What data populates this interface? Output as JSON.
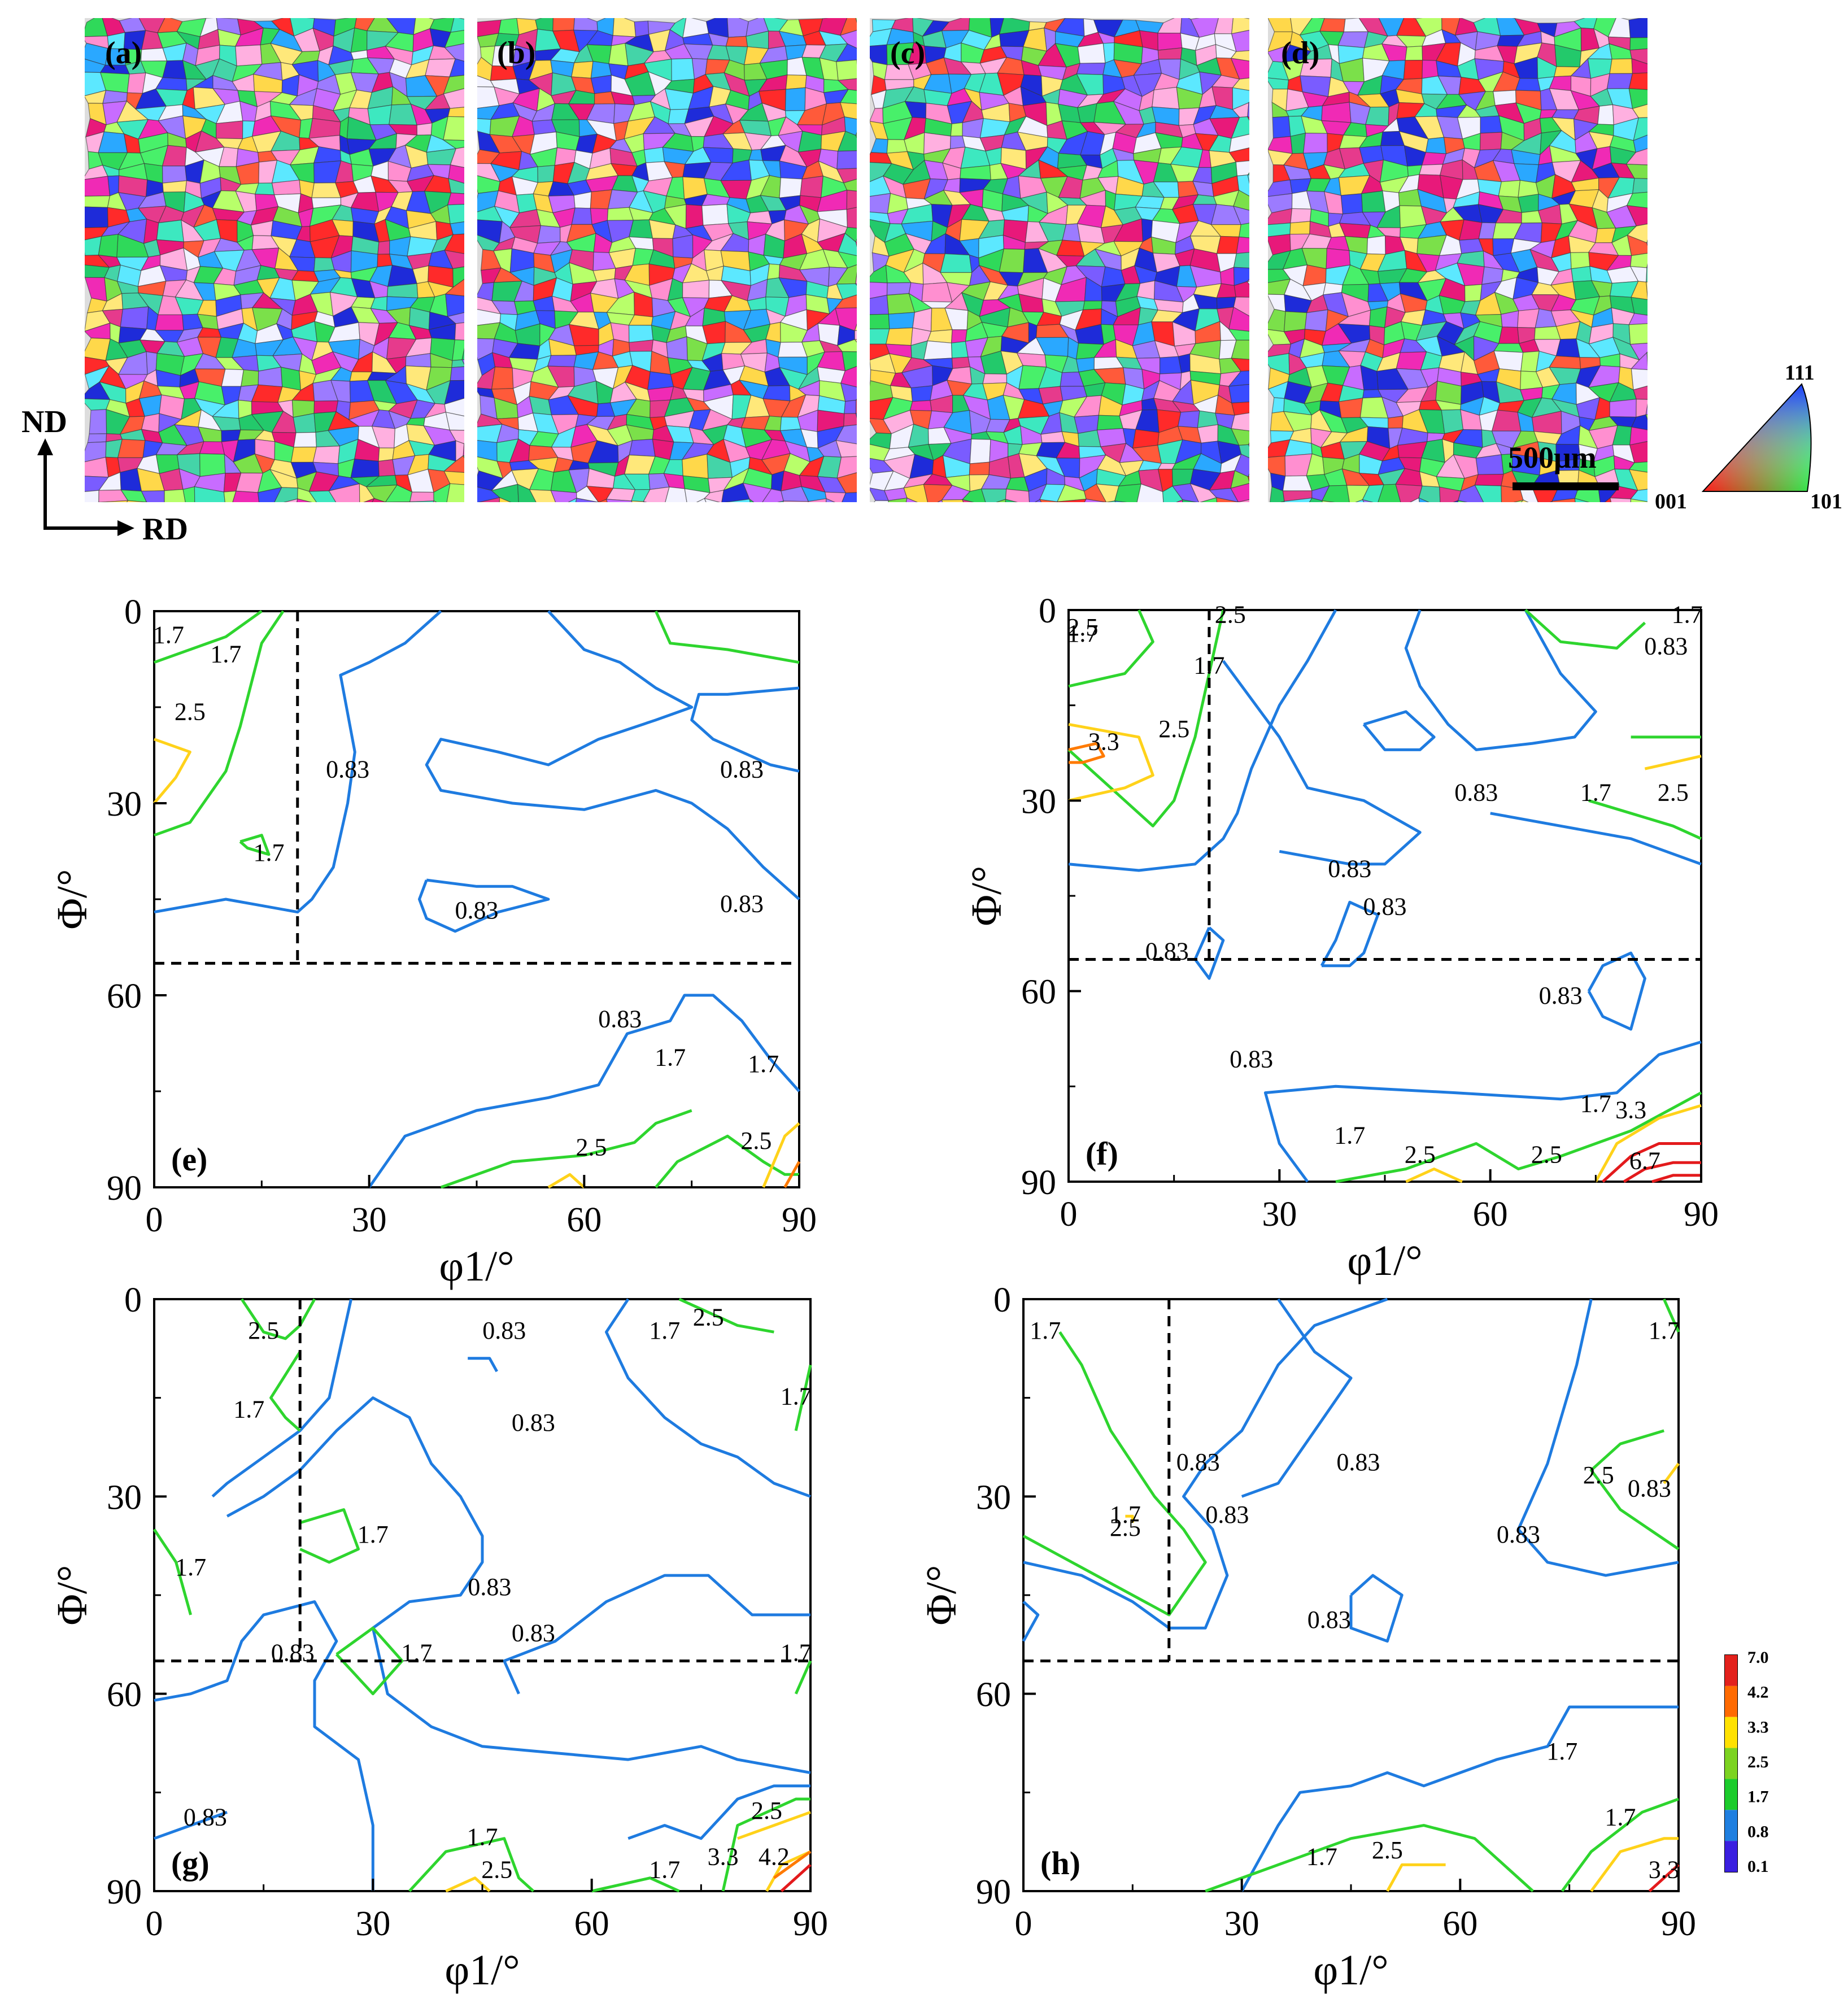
{
  "figure": {
    "ebsd_panels": [
      {
        "label": "(a)"
      },
      {
        "label": "(b)"
      },
      {
        "label": "(c)"
      },
      {
        "label": "(d)"
      }
    ],
    "scale_bar": "500μm",
    "axes_glyph": {
      "nd": "ND",
      "rd": "RD"
    },
    "ipf_key": {
      "top": "111",
      "left": "001",
      "right": "101"
    },
    "colorbar": {
      "levels": [
        "7.0",
        "4.2",
        "3.3",
        "2.5",
        "1.7",
        "0.8",
        "0.1"
      ],
      "colors": [
        "#e3211c",
        "#ff6a00",
        "#ffe100",
        "#7cd321",
        "#1ccc2c",
        "#1f7fe0",
        "#3a1fe0"
      ]
    }
  },
  "chart_data": [
    {
      "panel": "(e)",
      "type": "contour",
      "xlabel": "φ1/°",
      "ylabel": "Φ/°",
      "xlim": [
        0,
        90
      ],
      "ylim": [
        0,
        90
      ],
      "xticks": [
        "0",
        "30",
        "60",
        "90"
      ],
      "yticks": [
        "0",
        "30",
        "60",
        "90"
      ],
      "guide_lines": {
        "phi1": 20,
        "Phi": 55
      },
      "contour_labels": [
        "1.7",
        "1.7",
        "2.5",
        "0.83",
        "0.83",
        "1.7",
        "0.83",
        "0.83",
        "0.83",
        "1.7",
        "1.7",
        "2.5",
        "2.5"
      ]
    },
    {
      "panel": "(f)",
      "type": "contour",
      "xlabel": "φ1/°",
      "ylabel": "Φ/°",
      "xlim": [
        0,
        90
      ],
      "ylim": [
        0,
        90
      ],
      "xticks": [
        "0",
        "30",
        "60",
        "90"
      ],
      "yticks": [
        "0",
        "30",
        "60",
        "90"
      ],
      "guide_lines": {
        "phi1": 20,
        "Phi": 55
      },
      "contour_labels": [
        "1.7",
        "2.5",
        "2.5",
        "0.83",
        "1.7",
        "1.7",
        "3.3",
        "2.5",
        "0.83",
        "1.7",
        "2.5",
        "0.83",
        "0.83",
        "0.83",
        "0.83",
        "0.83",
        "1.7",
        "3.3",
        "1.7",
        "2.5",
        "2.5",
        "6.7"
      ]
    },
    {
      "panel": "(g)",
      "type": "contour",
      "xlabel": "φ1/°",
      "ylabel": "Φ/°",
      "xlim": [
        0,
        90
      ],
      "ylim": [
        0,
        90
      ],
      "xticks": [
        "0",
        "30",
        "60",
        "90"
      ],
      "yticks": [
        "0",
        "30",
        "60",
        "90"
      ],
      "guide_lines": {
        "phi1": 20,
        "Phi": 55
      },
      "contour_labels": [
        "2.5",
        "0.83",
        "1.7",
        "2.5",
        "1.7",
        "1.7",
        "0.83",
        "1.7",
        "1.7",
        "0.83",
        "0.83",
        "0.83",
        "1.7",
        "1.7",
        "0.83",
        "2.5",
        "1.7",
        "2.5",
        "1.7",
        "3.3",
        "4.2"
      ]
    },
    {
      "panel": "(h)",
      "type": "contour",
      "xlabel": "φ1/°",
      "ylabel": "Φ/°",
      "xlim": [
        0,
        90
      ],
      "ylim": [
        0,
        90
      ],
      "xticks": [
        "0",
        "30",
        "60",
        "90"
      ],
      "yticks": [
        "0",
        "30",
        "60",
        "90"
      ],
      "guide_lines": {
        "phi1": 20,
        "Phi": 55
      },
      "contour_labels": [
        "1.7",
        "1.7",
        "0.83",
        "0.83",
        "1.7",
        "2.5",
        "0.83",
        "0.83",
        "2.5",
        "0.83",
        "0.83",
        "1.7",
        "1.7",
        "2.5",
        "1.7",
        "3.3"
      ]
    }
  ]
}
